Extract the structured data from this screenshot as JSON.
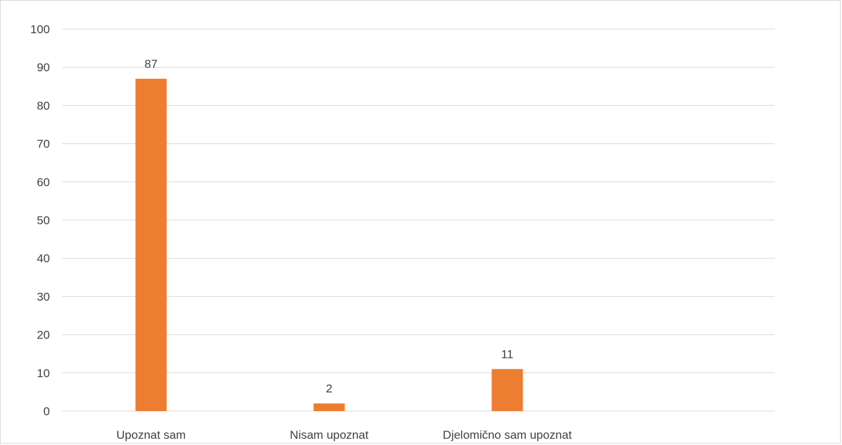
{
  "chart_data": {
    "type": "bar",
    "title": "",
    "xlabel": "",
    "ylabel": "",
    "categories": [
      "Upoznat sam",
      "Nisam upoznat",
      "Djelomično sam upoznat"
    ],
    "values": [
      87,
      2,
      11
    ],
    "data_labels": [
      "87",
      "2",
      "11"
    ],
    "ylim": [
      0,
      100
    ],
    "y_ticks": [
      "0",
      "10",
      "20",
      "30",
      "40",
      "50",
      "60",
      "70",
      "80",
      "90",
      "100"
    ],
    "grid": true,
    "legend": "none",
    "bar_color": "#ED7D31",
    "grid_color": "#D9D9D9"
  }
}
